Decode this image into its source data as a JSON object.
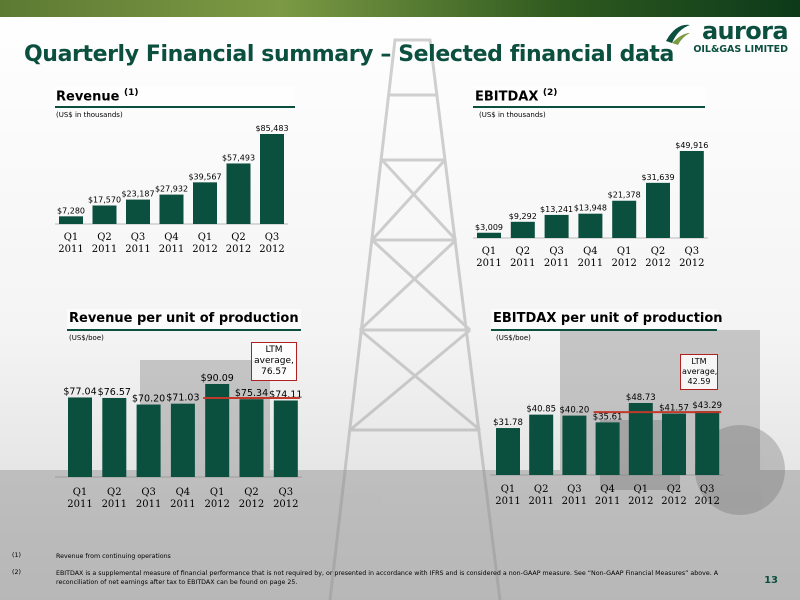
{
  "slide": {
    "title": "Quarterly Financial summary – Selected financial data",
    "page_number": "13"
  },
  "logo": {
    "name": "aurora",
    "sub": "OIL&GAS LIMITED"
  },
  "colors": {
    "bar": "#0b4f3f",
    "title": "#0b4f3f",
    "ltm_line": "#c0392b",
    "ltm_box_border": "#b02020"
  },
  "panels": {
    "revenue": {
      "title": "Revenue",
      "note_ref": "(1)",
      "unit": "(US$ in thousands)"
    },
    "ebitdax": {
      "title": "EBITDAX",
      "note_ref": "(2)",
      "unit": "(US$ in thousands)"
    },
    "revenue_per_unit": {
      "title": "Revenue per unit of production",
      "unit": "(US$/boe)",
      "ltm": {
        "line1": "LTM",
        "line2": "average,",
        "line3": "76.57"
      }
    },
    "ebitdax_per_unit": {
      "title": "EBITDAX per unit of production",
      "unit": "(US$/boe)",
      "ltm": {
        "line1": "LTM",
        "line2": "average,",
        "line3": "42.59"
      }
    }
  },
  "chart_data": [
    {
      "id": "revenue",
      "type": "bar",
      "title": "Revenue (1)",
      "categories": [
        "Q1 2011",
        "Q2 2011",
        "Q3 2011",
        "Q4 2011",
        "Q1 2012",
        "Q2 2012",
        "Q3 2012"
      ],
      "values": [
        7280,
        17570,
        23187,
        27932,
        39567,
        57493,
        85483
      ],
      "value_labels": [
        "$7,280",
        "$17,570",
        "$23,187",
        "$27,932",
        "$39,567",
        "$57,493",
        "$85,483"
      ],
      "ylim": [
        0,
        85483
      ]
    },
    {
      "id": "ebitdax",
      "type": "bar",
      "title": "EBITDAX (2)",
      "categories": [
        "Q1 2011",
        "Q2 2011",
        "Q3 2011",
        "Q4 2011",
        "Q1 2012",
        "Q2 2012",
        "Q3 2012"
      ],
      "values": [
        3009,
        9292,
        13241,
        13948,
        21378,
        31639,
        49916
      ],
      "value_labels": [
        "$3,009",
        "$9,292",
        "$13,241",
        "$13,948",
        "$21,378",
        "$31,639",
        "$49,916"
      ],
      "ylim": [
        0,
        49916
      ]
    },
    {
      "id": "revenue_per_unit",
      "type": "bar",
      "title": "Revenue per unit of production",
      "categories": [
        "Q1 2011",
        "Q2 2011",
        "Q3 2011",
        "Q4 2011",
        "Q1 2012",
        "Q2 2012",
        "Q3 2012"
      ],
      "values": [
        77.04,
        76.57,
        70.2,
        71.03,
        90.09,
        75.34,
        74.11
      ],
      "value_labels": [
        "$77.04",
        "$76.57",
        "$70.20",
        "$71.03",
        "$90.09",
        "$75.34",
        "$74.11"
      ],
      "reference_line": {
        "value": 76.57,
        "from_index": 4,
        "to_index": 6
      },
      "ylim": [
        0,
        90.09
      ]
    },
    {
      "id": "ebitdax_per_unit",
      "type": "bar",
      "title": "EBITDAX per unit of production",
      "categories": [
        "Q1 2011",
        "Q2 2011",
        "Q3 2011",
        "Q4 2011",
        "Q1 2012",
        "Q2 2012",
        "Q3 2012"
      ],
      "values": [
        31.78,
        40.85,
        40.2,
        35.61,
        48.73,
        41.57,
        43.29
      ],
      "value_labels": [
        "$31.78",
        "$40.85",
        "$40.20",
        "$35.61",
        "$48.73",
        "$41.57",
        "$43.29"
      ],
      "reference_line": {
        "value": 42.59,
        "from_index": 3,
        "to_index": 6
      },
      "ylim": [
        0,
        48.73
      ]
    }
  ],
  "footnotes": [
    {
      "num": "(1)",
      "text": "Revenue from continuing operations"
    },
    {
      "num": "(2)",
      "text": "EBITDAX is a supplemental measure of financial performance that is not required by, or presented in accordance with IFRS and is considered a non-GAAP measure. See “Non-GAAP Financial Measures” above. A reconciliation of net earnings after tax to EBITDAX can be found on page 25."
    }
  ]
}
